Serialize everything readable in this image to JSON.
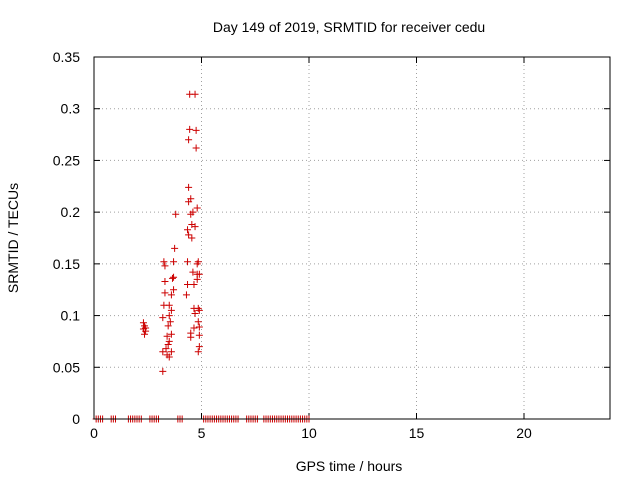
{
  "chart_data": {
    "type": "scatter",
    "title": "Day 149 of 2019, SRMTID for receiver cedu",
    "xlabel": "GPS time / hours",
    "ylabel": "SRMTID / TECUs",
    "xlim": [
      0,
      24
    ],
    "ylim": [
      0,
      0.35
    ],
    "xticks": [
      0,
      5,
      10,
      15,
      20
    ],
    "xtick_labels": [
      "0",
      "5",
      "10",
      "15",
      "20"
    ],
    "yticks": [
      0,
      0.05,
      0.1,
      0.15,
      0.2,
      0.25,
      0.3,
      0.35
    ],
    "ytick_labels": [
      "0",
      "0.05",
      "0.1",
      "0.15",
      "0.2",
      "0.25",
      "0.3",
      "0.35"
    ],
    "grid": true,
    "marker": "plus",
    "color": "#cc0000",
    "series": [
      {
        "name": "SRMTID",
        "points": [
          [
            0.1,
            0
          ],
          [
            0.2,
            0
          ],
          [
            0.3,
            0
          ],
          [
            0.4,
            0
          ],
          [
            0.8,
            0
          ],
          [
            0.9,
            0
          ],
          [
            1.0,
            0
          ],
          [
            1.6,
            0
          ],
          [
            1.7,
            0
          ],
          [
            1.8,
            0
          ],
          [
            1.9,
            0
          ],
          [
            2.0,
            0
          ],
          [
            2.1,
            0
          ],
          [
            2.2,
            0
          ],
          [
            2.6,
            0
          ],
          [
            2.7,
            0
          ],
          [
            2.8,
            0
          ],
          [
            2.9,
            0
          ],
          [
            3.0,
            0
          ],
          [
            3.9,
            0
          ],
          [
            4.0,
            0
          ],
          [
            4.1,
            0
          ],
          [
            5.1,
            0
          ],
          [
            5.2,
            0
          ],
          [
            5.3,
            0
          ],
          [
            5.4,
            0
          ],
          [
            5.5,
            0
          ],
          [
            5.6,
            0
          ],
          [
            5.7,
            0
          ],
          [
            5.8,
            0
          ],
          [
            5.9,
            0
          ],
          [
            6.0,
            0
          ],
          [
            6.1,
            0
          ],
          [
            6.2,
            0
          ],
          [
            6.3,
            0
          ],
          [
            6.4,
            0
          ],
          [
            6.5,
            0
          ],
          [
            6.6,
            0
          ],
          [
            6.7,
            0
          ],
          [
            7.1,
            0
          ],
          [
            7.2,
            0
          ],
          [
            7.3,
            0
          ],
          [
            7.4,
            0
          ],
          [
            7.5,
            0
          ],
          [
            7.6,
            0
          ],
          [
            7.9,
            0
          ],
          [
            8.0,
            0
          ],
          [
            8.1,
            0
          ],
          [
            8.2,
            0
          ],
          [
            8.3,
            0
          ],
          [
            8.4,
            0
          ],
          [
            8.5,
            0
          ],
          [
            8.6,
            0
          ],
          [
            8.7,
            0
          ],
          [
            8.8,
            0
          ],
          [
            8.9,
            0
          ],
          [
            9.0,
            0
          ],
          [
            9.1,
            0
          ],
          [
            9.2,
            0
          ],
          [
            9.3,
            0
          ],
          [
            9.4,
            0
          ],
          [
            9.5,
            0
          ],
          [
            9.6,
            0
          ],
          [
            9.7,
            0
          ],
          [
            9.8,
            0
          ],
          [
            9.9,
            0
          ],
          [
            10.0,
            0
          ],
          [
            2.3,
            0.093
          ],
          [
            2.35,
            0.09
          ],
          [
            2.3,
            0.087
          ],
          [
            2.4,
            0.085
          ],
          [
            2.35,
            0.082
          ],
          [
            2.4,
            0.088
          ],
          [
            3.2,
            0.046
          ],
          [
            3.2,
            0.065
          ],
          [
            3.2,
            0.098
          ],
          [
            3.25,
            0.11
          ],
          [
            3.3,
            0.122
          ],
          [
            3.3,
            0.133
          ],
          [
            3.3,
            0.148
          ],
          [
            3.25,
            0.152
          ],
          [
            3.35,
            0.068
          ],
          [
            3.4,
            0.08
          ],
          [
            3.4,
            0.062
          ],
          [
            3.45,
            0.072
          ],
          [
            3.45,
            0.09
          ],
          [
            3.5,
            0.06
          ],
          [
            3.5,
            0.075
          ],
          [
            3.5,
            0.1
          ],
          [
            3.5,
            0.11
          ],
          [
            3.55,
            0.094
          ],
          [
            3.6,
            0.065
          ],
          [
            3.6,
            0.082
          ],
          [
            3.6,
            0.105
          ],
          [
            3.6,
            0.12
          ],
          [
            3.65,
            0.136
          ],
          [
            3.7,
            0.137
          ],
          [
            3.7,
            0.152
          ],
          [
            3.7,
            0.125
          ],
          [
            3.75,
            0.165
          ],
          [
            3.8,
            0.198
          ],
          [
            4.3,
            0.12
          ],
          [
            4.35,
            0.13
          ],
          [
            4.35,
            0.152
          ],
          [
            4.35,
            0.183
          ],
          [
            4.4,
            0.178
          ],
          [
            4.4,
            0.21
          ],
          [
            4.4,
            0.224
          ],
          [
            4.4,
            0.27
          ],
          [
            4.45,
            0.28
          ],
          [
            4.45,
            0.314
          ],
          [
            4.5,
            0.079
          ],
          [
            4.5,
            0.083
          ],
          [
            4.5,
            0.198
          ],
          [
            4.5,
            0.213
          ],
          [
            4.55,
            0.188
          ],
          [
            4.55,
            0.175
          ],
          [
            4.6,
            0.2
          ],
          [
            4.6,
            0.142
          ],
          [
            4.65,
            0.088
          ],
          [
            4.65,
            0.107
          ],
          [
            4.65,
            0.13
          ],
          [
            4.7,
            0.102
          ],
          [
            4.7,
            0.186
          ],
          [
            4.7,
            0.314
          ],
          [
            4.75,
            0.262
          ],
          [
            4.75,
            0.279
          ],
          [
            4.8,
            0.204
          ],
          [
            4.8,
            0.15
          ],
          [
            4.8,
            0.14
          ],
          [
            4.8,
            0.135
          ],
          [
            4.85,
            0.107
          ],
          [
            4.85,
            0.094
          ],
          [
            4.85,
            0.065
          ],
          [
            4.9,
            0.07
          ],
          [
            4.9,
            0.089
          ],
          [
            4.9,
            0.081
          ],
          [
            4.9,
            0.105
          ],
          [
            4.85,
            0.152
          ],
          [
            4.9,
            0.14
          ]
        ]
      }
    ]
  }
}
